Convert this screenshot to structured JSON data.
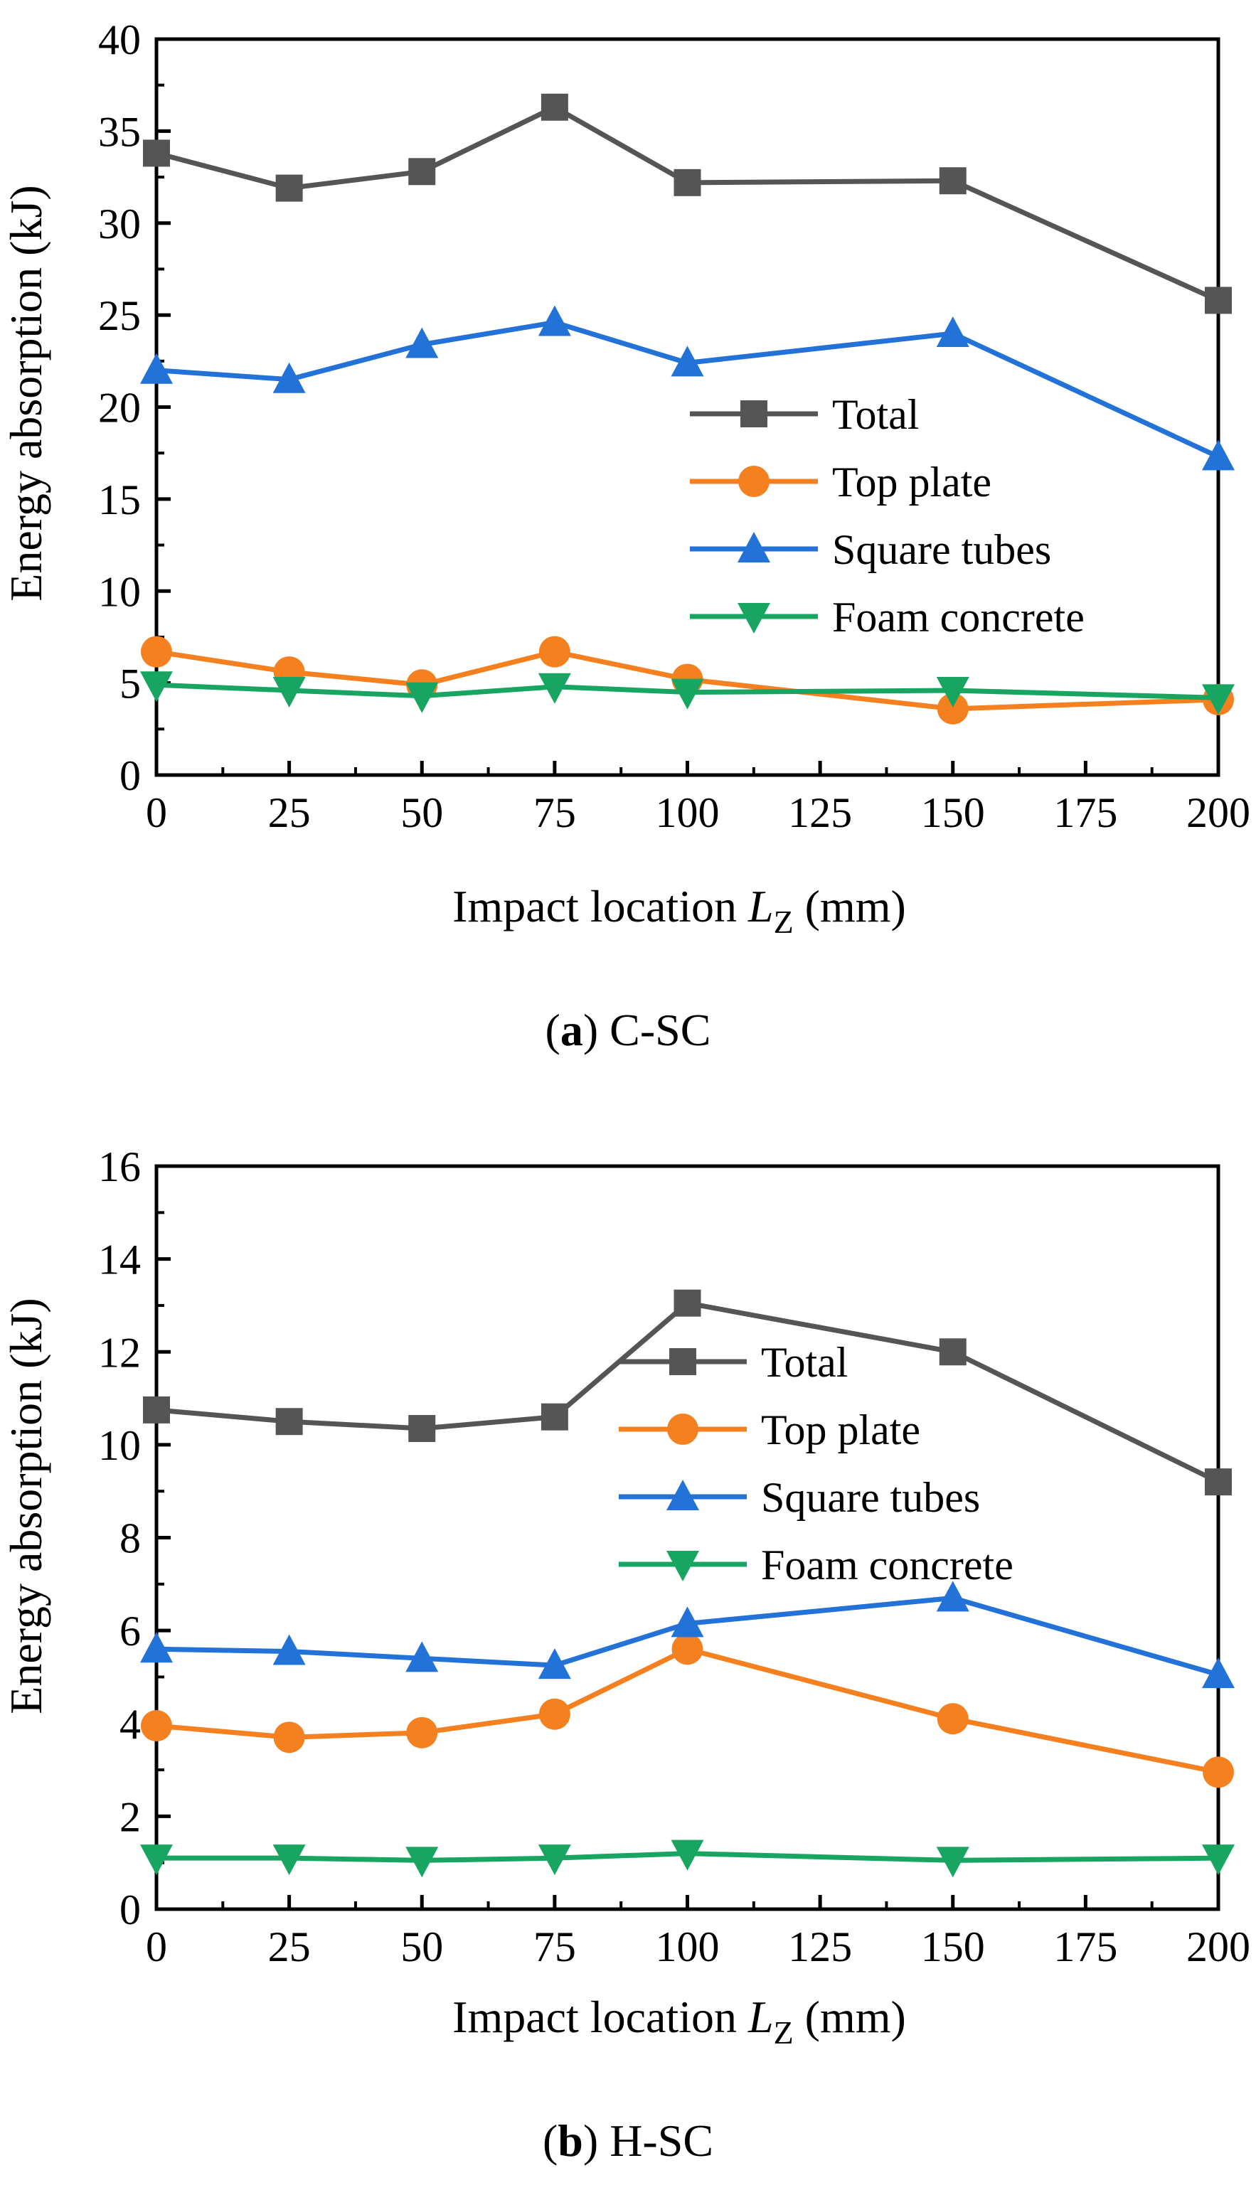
{
  "chart_data": [
    {
      "type": "line",
      "caption": {
        "letter": "a",
        "text": "C-SC"
      },
      "xlabel": {
        "prefix": "Impact location ",
        "var": "L",
        "sub": "Z",
        "suffix": " (mm)"
      },
      "ylabel": "Energy absorption (kJ)",
      "xlim": [
        0,
        200
      ],
      "ylim": [
        0,
        40
      ],
      "xticks": [
        0,
        25,
        50,
        75,
        100,
        125,
        150,
        175,
        200
      ],
      "yticks": [
        0,
        5,
        10,
        15,
        20,
        25,
        30,
        35,
        40
      ],
      "x": [
        0,
        25,
        50,
        75,
        100,
        150,
        200
      ],
      "legend_position": "center-right",
      "series": [
        {
          "name": "Total",
          "marker": "square",
          "color": "#555555",
          "values": [
            33.8,
            31.9,
            32.8,
            36.3,
            32.2,
            32.3,
            25.8
          ]
        },
        {
          "name": "Top plate",
          "marker": "circle",
          "color": "#F4801F",
          "values": [
            6.7,
            5.6,
            4.9,
            6.7,
            5.2,
            3.6,
            4.1
          ]
        },
        {
          "name": "Square tubes",
          "marker": "triangle-up",
          "color": "#2272D7",
          "values": [
            22.0,
            21.5,
            23.4,
            24.6,
            22.4,
            24.0,
            17.3
          ]
        },
        {
          "name": "Foam concrete",
          "marker": "triangle-down",
          "color": "#18A562",
          "values": [
            4.9,
            4.6,
            4.3,
            4.8,
            4.5,
            4.6,
            4.2
          ]
        }
      ]
    },
    {
      "type": "line",
      "caption": {
        "letter": "b",
        "text": "H-SC"
      },
      "xlabel": {
        "prefix": "Impact location ",
        "var": "L",
        "sub": "Z",
        "suffix": " (mm)"
      },
      "ylabel": "Energy absorption (kJ)",
      "xlim": [
        0,
        200
      ],
      "ylim": [
        0,
        16
      ],
      "xticks": [
        0,
        25,
        50,
        75,
        100,
        125,
        150,
        175,
        200
      ],
      "yticks": [
        0,
        2,
        4,
        6,
        8,
        10,
        12,
        14,
        16
      ],
      "x": [
        0,
        25,
        50,
        75,
        100,
        150,
        200
      ],
      "legend_position": "upper-middle",
      "series": [
        {
          "name": "Total",
          "marker": "square",
          "color": "#555555",
          "values": [
            10.75,
            10.5,
            10.35,
            10.6,
            13.05,
            12.0,
            9.2
          ]
        },
        {
          "name": "Top plate",
          "marker": "circle",
          "color": "#F4801F",
          "values": [
            3.95,
            3.7,
            3.8,
            4.2,
            5.6,
            4.1,
            2.95
          ]
        },
        {
          "name": "Square tubes",
          "marker": "triangle-up",
          "color": "#2272D7",
          "values": [
            5.6,
            5.55,
            5.4,
            5.25,
            6.15,
            6.7,
            5.05
          ]
        },
        {
          "name": "Foam concrete",
          "marker": "triangle-down",
          "color": "#18A562",
          "values": [
            1.1,
            1.1,
            1.05,
            1.1,
            1.2,
            1.05,
            1.1
          ]
        }
      ]
    }
  ]
}
